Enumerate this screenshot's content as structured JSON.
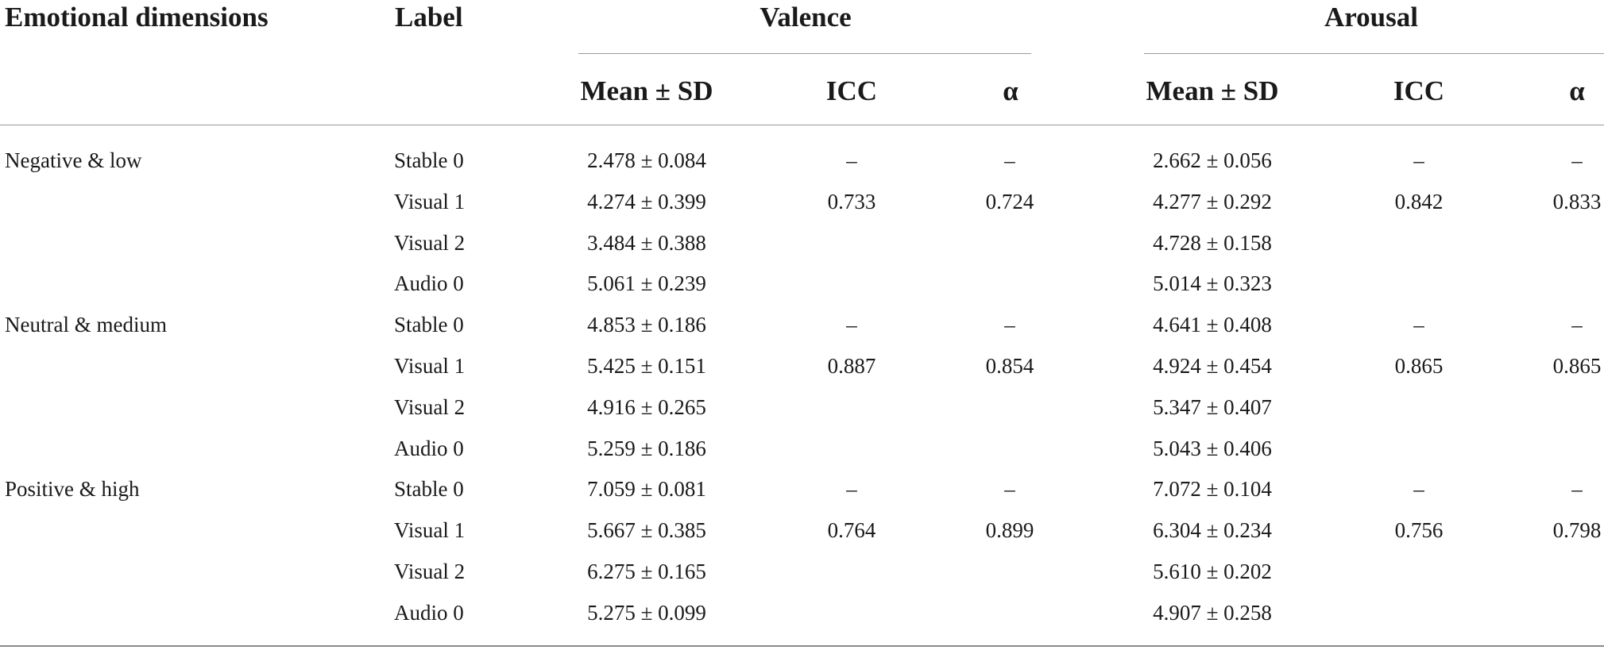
{
  "header": {
    "dimensions": "Emotional dimensions",
    "label": "Label",
    "valence": "Valence",
    "arousal": "Arousal",
    "mean_sd": "Mean ± SD",
    "icc": "ICC",
    "alpha": "α"
  },
  "groups": [
    {
      "name": "Negative & low",
      "rows": [
        {
          "label": "Stable 0",
          "v_mean": "2.478 ± 0.084",
          "v_icc": "–",
          "v_alpha": "–",
          "a_mean": "2.662 ± 0.056",
          "a_icc": "–",
          "a_alpha": "–"
        },
        {
          "label": "Visual 1",
          "v_mean": "4.274 ± 0.399",
          "v_icc": "0.733",
          "v_alpha": "0.724",
          "a_mean": "4.277 ± 0.292",
          "a_icc": "0.842",
          "a_alpha": "0.833"
        },
        {
          "label": "Visual 2",
          "v_mean": "3.484 ± 0.388",
          "v_icc": "",
          "v_alpha": "",
          "a_mean": "4.728 ± 0.158",
          "a_icc": "",
          "a_alpha": ""
        },
        {
          "label": "Audio 0",
          "v_mean": "5.061 ± 0.239",
          "v_icc": "",
          "v_alpha": "",
          "a_mean": "5.014 ± 0.323",
          "a_icc": "",
          "a_alpha": ""
        }
      ]
    },
    {
      "name": "Neutral & medium",
      "rows": [
        {
          "label": "Stable 0",
          "v_mean": "4.853 ± 0.186",
          "v_icc": "–",
          "v_alpha": "–",
          "a_mean": "4.641 ± 0.408",
          "a_icc": "–",
          "a_alpha": "–"
        },
        {
          "label": "Visual 1",
          "v_mean": "5.425 ± 0.151",
          "v_icc": "0.887",
          "v_alpha": "0.854",
          "a_mean": "4.924 ± 0.454",
          "a_icc": "0.865",
          "a_alpha": "0.865"
        },
        {
          "label": "Visual 2",
          "v_mean": "4.916 ± 0.265",
          "v_icc": "",
          "v_alpha": "",
          "a_mean": "5.347 ± 0.407",
          "a_icc": "",
          "a_alpha": ""
        },
        {
          "label": "Audio 0",
          "v_mean": "5.259 ± 0.186",
          "v_icc": "",
          "v_alpha": "",
          "a_mean": "5.043 ± 0.406",
          "a_icc": "",
          "a_alpha": ""
        }
      ]
    },
    {
      "name": "Positive & high",
      "rows": [
        {
          "label": "Stable 0",
          "v_mean": "7.059 ± 0.081",
          "v_icc": "–",
          "v_alpha": "–",
          "a_mean": "7.072 ± 0.104",
          "a_icc": "–",
          "a_alpha": "–"
        },
        {
          "label": "Visual 1",
          "v_mean": "5.667 ± 0.385",
          "v_icc": "0.764",
          "v_alpha": "0.899",
          "a_mean": "6.304 ± 0.234",
          "a_icc": "0.756",
          "a_alpha": "0.798"
        },
        {
          "label": "Visual 2",
          "v_mean": "6.275 ± 0.165",
          "v_icc": "",
          "v_alpha": "",
          "a_mean": "5.610 ± 0.202",
          "a_icc": "",
          "a_alpha": ""
        },
        {
          "label": "Audio 0",
          "v_mean": "5.275 ± 0.099",
          "v_icc": "",
          "v_alpha": "",
          "a_mean": "4.907 ± 0.258",
          "a_icc": "",
          "a_alpha": ""
        }
      ]
    }
  ]
}
